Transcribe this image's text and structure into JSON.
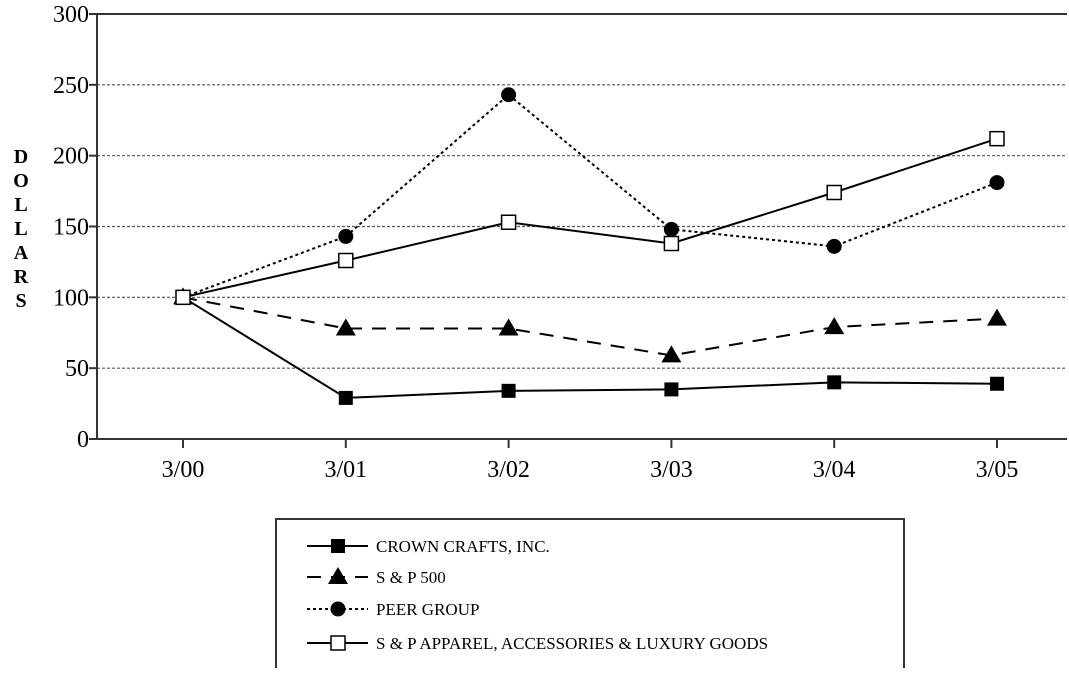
{
  "chart_data": {
    "type": "line",
    "ylabel": "DOLLARS",
    "xlabel": "",
    "categories": [
      "3/00",
      "3/01",
      "3/02",
      "3/03",
      "3/04",
      "3/05"
    ],
    "ylim": [
      0,
      300
    ],
    "yticks": [
      0,
      50,
      100,
      150,
      200,
      250,
      300
    ],
    "grid": "horizontal dotted",
    "legend_position": "bottom",
    "series": [
      {
        "name": "CROWN CRAFTS, INC.",
        "marker": "square-filled",
        "line": "solid",
        "values": [
          100,
          29,
          34,
          35,
          40,
          39
        ]
      },
      {
        "name": "S & P 500",
        "marker": "triangle-filled",
        "line": "dashed",
        "values": [
          100,
          78,
          78,
          59,
          79,
          85
        ]
      },
      {
        "name": "PEER GROUP",
        "marker": "circle-filled",
        "line": "dotted",
        "values": [
          100,
          143,
          243,
          148,
          136,
          181
        ]
      },
      {
        "name": "S & P APPAREL, ACCESSORIES & LUXURY GOODS",
        "marker": "square-open",
        "line": "solid",
        "values": [
          100,
          126,
          153,
          138,
          174,
          212
        ]
      }
    ]
  }
}
